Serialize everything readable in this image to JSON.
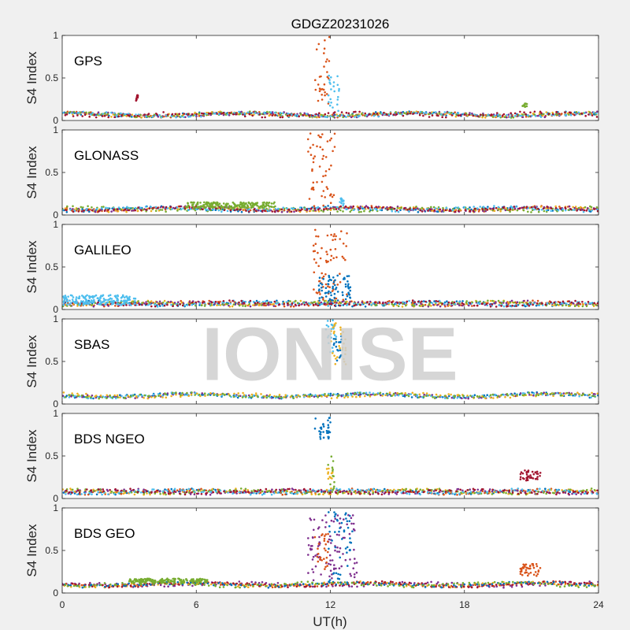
{
  "chart_data": {
    "type": "scatter",
    "title": "GDGZ20231026",
    "watermark": "IONISE",
    "xlabel": "UT(h)",
    "ylabel": "S4 Index",
    "xlim": [
      0,
      24
    ],
    "xticks": [
      0,
      6,
      12,
      18,
      24
    ],
    "ylim": [
      0,
      1
    ],
    "yticks": [
      0,
      0.5,
      1
    ],
    "ytick_labels": [
      "0",
      "0.5",
      "1"
    ],
    "grid": false,
    "colors": {
      "blue": "#0072bd",
      "orange": "#d95319",
      "yellow": "#edb120",
      "purple": "#7e2f8e",
      "green": "#77ac30",
      "cyan": "#4dbeee",
      "red": "#a2142f",
      "axis": "#262626",
      "figure_bg": "#f0f0f0",
      "watermark": "#cfcfcf"
    },
    "panels": [
      {
        "label": "GPS",
        "baseline": 0.07,
        "background_series": [
          "blue",
          "orange",
          "yellow",
          "purple",
          "green",
          "cyan",
          "red"
        ],
        "bursts": [
          {
            "color": "orange",
            "x_start": 11.3,
            "x_end": 12.0,
            "y_min": 0.15,
            "y_max": 1.0
          },
          {
            "color": "cyan",
            "x_start": 11.9,
            "x_end": 12.4,
            "y_min": 0.1,
            "y_max": 0.53
          },
          {
            "color": "red",
            "x_start": 3.3,
            "x_end": 3.4,
            "y_min": 0.22,
            "y_max": 0.3
          },
          {
            "color": "green",
            "x_start": 20.6,
            "x_end": 20.8,
            "y_min": 0.15,
            "y_max": 0.2
          }
        ]
      },
      {
        "label": "GLONASS",
        "baseline": 0.07,
        "background_series": [
          "blue",
          "orange",
          "yellow",
          "purple",
          "green",
          "cyan",
          "red"
        ],
        "bursts": [
          {
            "color": "orange",
            "x_start": 11.0,
            "x_end": 12.2,
            "y_min": 0.1,
            "y_max": 0.98
          },
          {
            "color": "cyan",
            "x_start": 12.4,
            "x_end": 12.6,
            "y_min": 0.1,
            "y_max": 0.2
          },
          {
            "color": "green",
            "x_start": 5.5,
            "x_end": 9.5,
            "y_min": 0.08,
            "y_max": 0.15
          }
        ]
      },
      {
        "label": "GALILEO",
        "baseline": 0.07,
        "background_series": [
          "blue",
          "orange",
          "yellow",
          "purple",
          "green",
          "cyan",
          "red"
        ],
        "bursts": [
          {
            "color": "orange",
            "x_start": 11.2,
            "x_end": 12.8,
            "y_min": 0.1,
            "y_max": 0.97
          },
          {
            "color": "blue",
            "x_start": 11.4,
            "x_end": 12.9,
            "y_min": 0.1,
            "y_max": 0.4
          },
          {
            "color": "cyan",
            "x_start": 0.0,
            "x_end": 3.3,
            "y_min": 0.05,
            "y_max": 0.17
          }
        ]
      },
      {
        "label": "SBAS",
        "baseline": 0.1,
        "background_series": [
          "blue",
          "purple",
          "cyan",
          "yellow",
          "green"
        ],
        "bursts": [
          {
            "color": "cyan",
            "x_start": 11.8,
            "x_end": 12.3,
            "y_min": 0.6,
            "y_max": 1.0
          },
          {
            "color": "yellow",
            "x_start": 12.0,
            "x_end": 12.7,
            "y_min": 0.45,
            "y_max": 0.95
          },
          {
            "color": "blue",
            "x_start": 12.1,
            "x_end": 12.5,
            "y_min": 0.5,
            "y_max": 0.8
          }
        ]
      },
      {
        "label": "BDS NGEO",
        "baseline": 0.08,
        "background_series": [
          "blue",
          "orange",
          "yellow",
          "purple",
          "green",
          "cyan",
          "red"
        ],
        "bursts": [
          {
            "color": "blue",
            "x_start": 11.3,
            "x_end": 12.0,
            "y_min": 0.7,
            "y_max": 0.97
          },
          {
            "color": "green",
            "x_start": 11.9,
            "x_end": 12.2,
            "y_min": 0.1,
            "y_max": 0.55
          },
          {
            "color": "yellow",
            "x_start": 11.8,
            "x_end": 12.1,
            "y_min": 0.1,
            "y_max": 0.4
          },
          {
            "color": "red",
            "x_start": 20.5,
            "x_end": 21.4,
            "y_min": 0.2,
            "y_max": 0.33
          }
        ]
      },
      {
        "label": "BDS GEO",
        "baseline": 0.1,
        "background_series": [
          "purple",
          "yellow",
          "orange",
          "red",
          "blue",
          "green"
        ],
        "bursts": [
          {
            "color": "purple",
            "x_start": 11.0,
            "x_end": 13.2,
            "y_min": 0.15,
            "y_max": 0.92
          },
          {
            "color": "blue",
            "x_start": 11.9,
            "x_end": 13.0,
            "y_min": 0.1,
            "y_max": 0.97
          },
          {
            "color": "orange",
            "x_start": 11.3,
            "x_end": 11.9,
            "y_min": 0.25,
            "y_max": 0.7
          },
          {
            "color": "orange",
            "x_start": 20.5,
            "x_end": 21.4,
            "y_min": 0.2,
            "y_max": 0.35
          },
          {
            "color": "green",
            "x_start": 3.0,
            "x_end": 6.5,
            "y_min": 0.12,
            "y_max": 0.17
          }
        ]
      }
    ]
  }
}
